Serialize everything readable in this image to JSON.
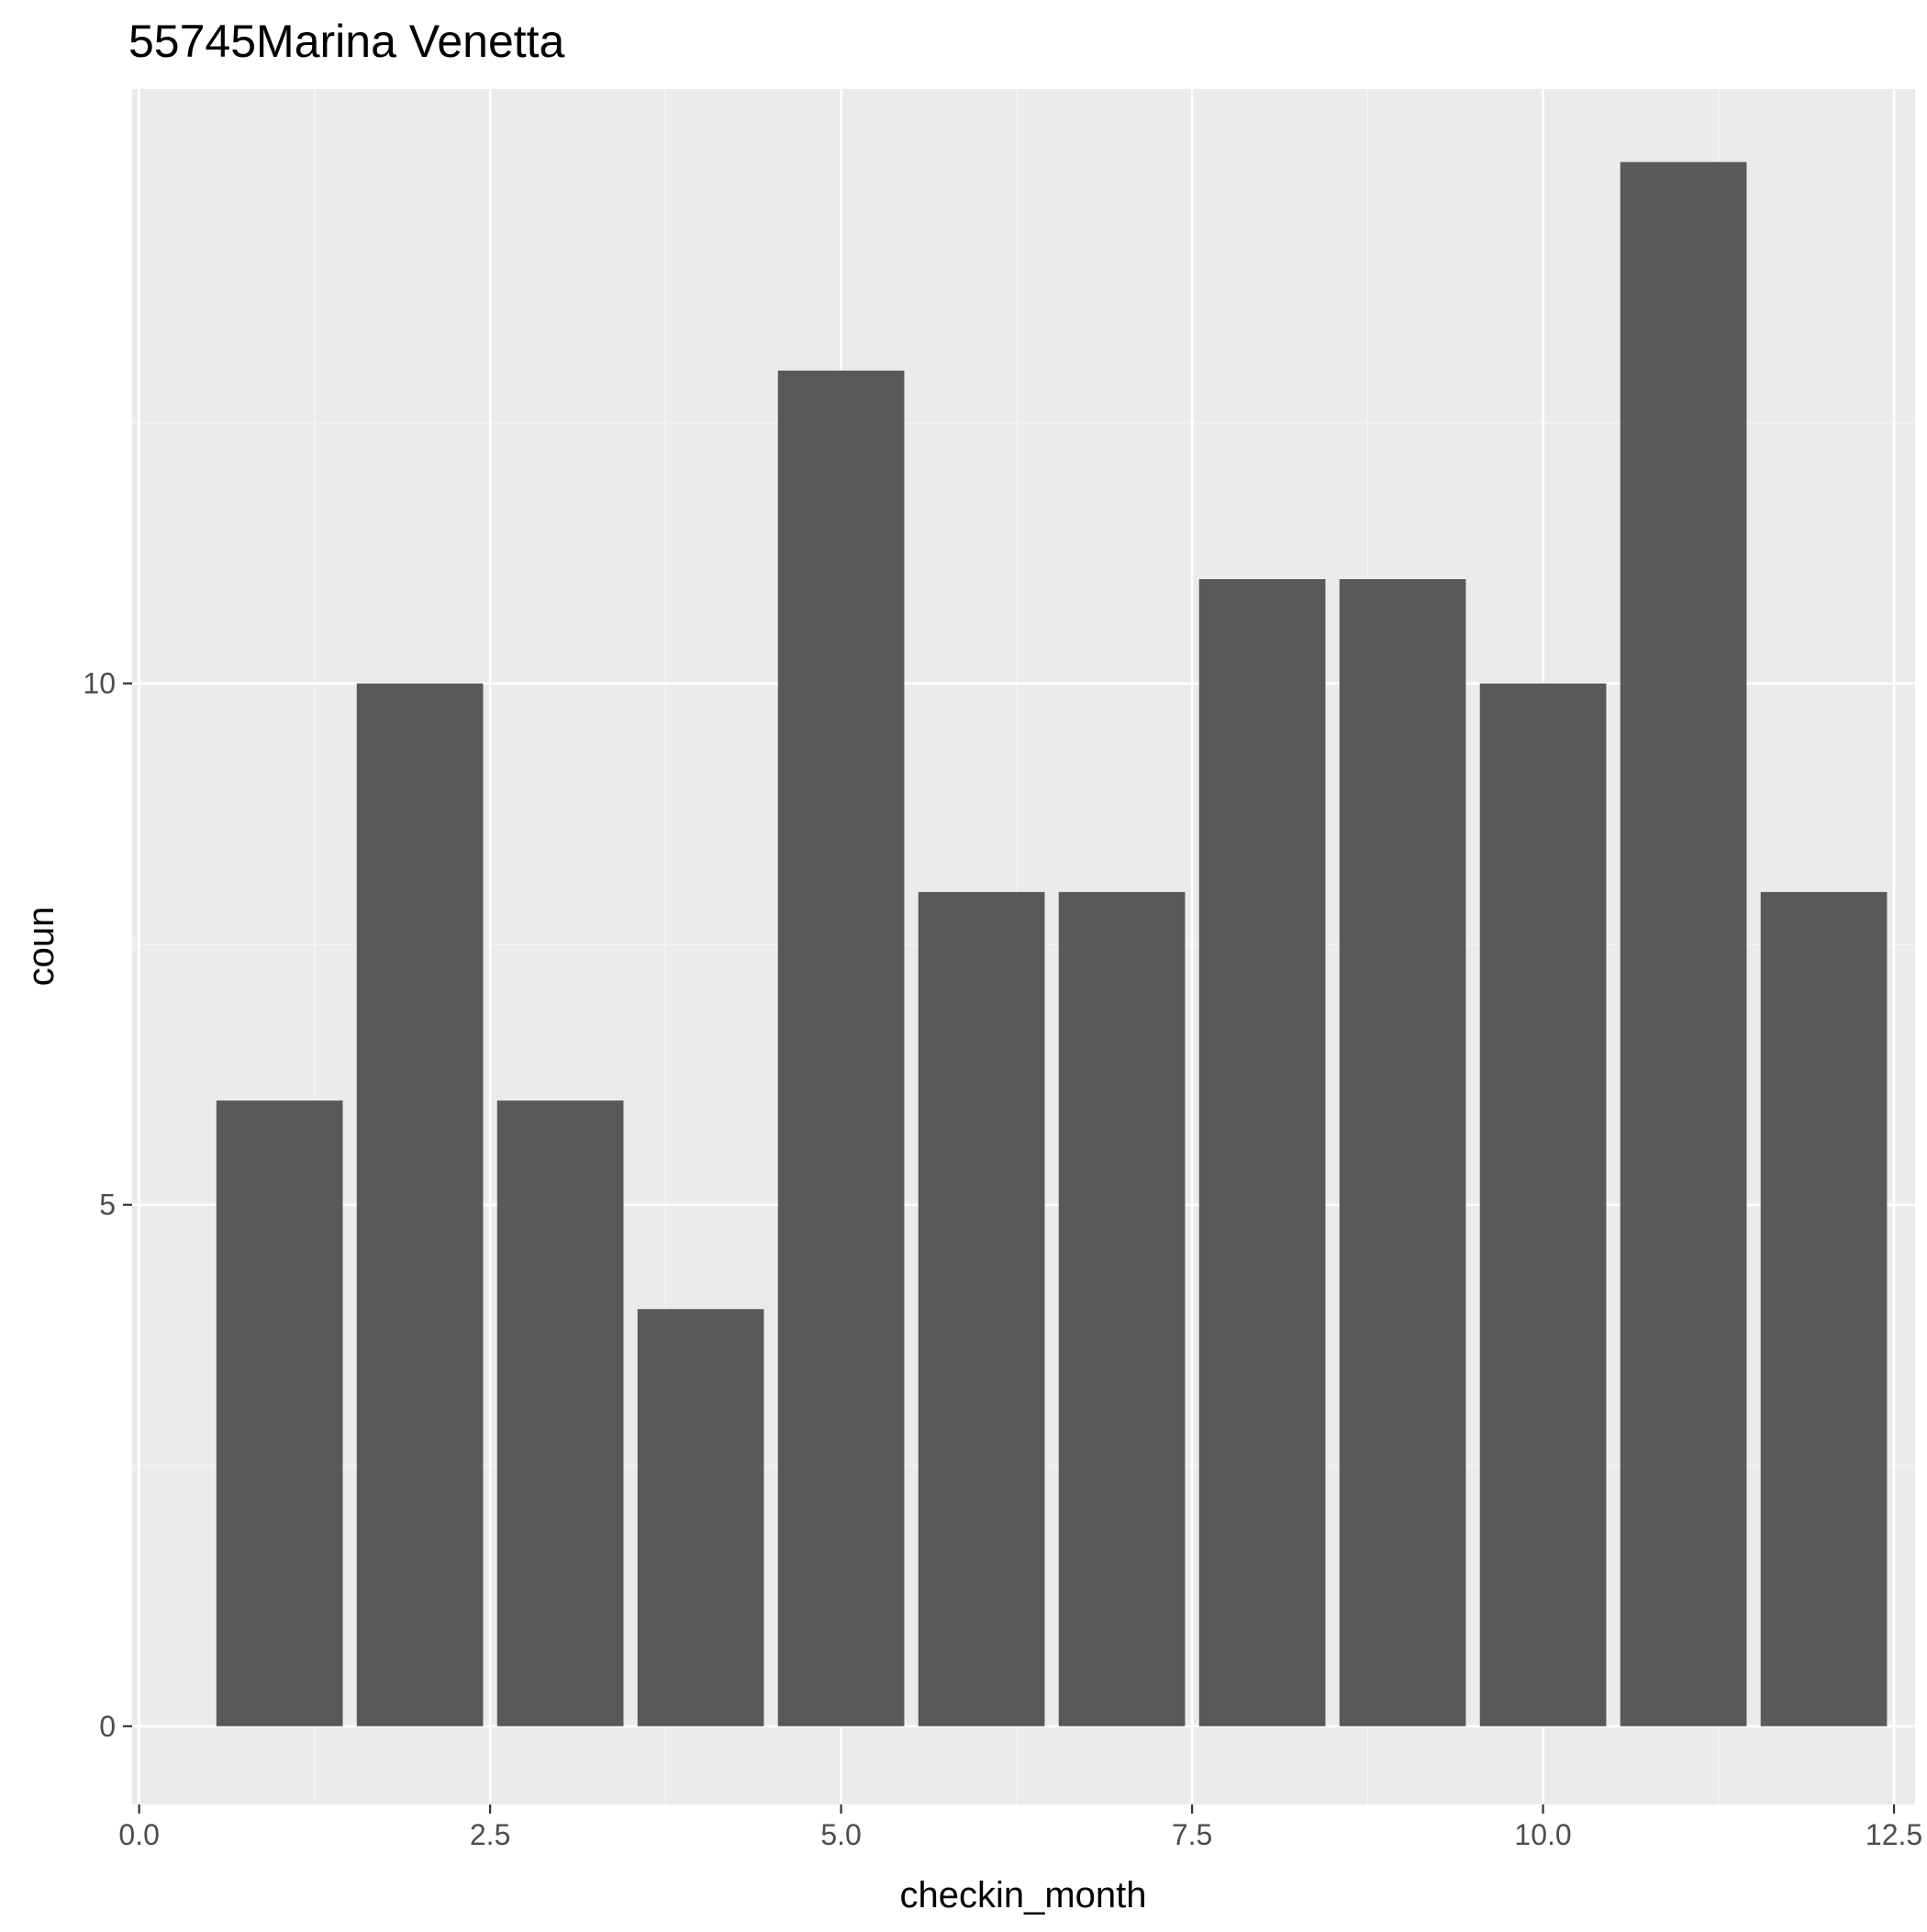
{
  "chart_data": {
    "type": "bar",
    "title": "55745Marina Venetta",
    "xlabel": "checkin_month",
    "ylabel": "coun",
    "x": [
      1,
      2,
      3,
      4,
      5,
      6,
      7,
      8,
      9,
      10,
      11,
      12
    ],
    "values": [
      6,
      10,
      6,
      4,
      13,
      8,
      8,
      11,
      11,
      10,
      15,
      8
    ],
    "xlim": [
      -0.05,
      12.65
    ],
    "ylim": [
      -0.75,
      15.7
    ],
    "x_ticks": [
      0.0,
      2.5,
      5.0,
      7.5,
      10.0,
      12.5
    ],
    "x_tick_labels": [
      "0.0",
      "2.5",
      "5.0",
      "7.5",
      "10.0",
      "12.5"
    ],
    "y_ticks": [
      0,
      5,
      10
    ],
    "y_tick_labels": [
      "0",
      "5",
      "10"
    ],
    "grid": true,
    "legend": "none",
    "colors": {
      "bar_fill": "#595959",
      "panel_background": "#ebebeb",
      "grid_major": "#ffffff",
      "grid_minor": "#f5f5f5",
      "tick_label": "#4d4d4d",
      "tick_mark": "#333333"
    }
  }
}
